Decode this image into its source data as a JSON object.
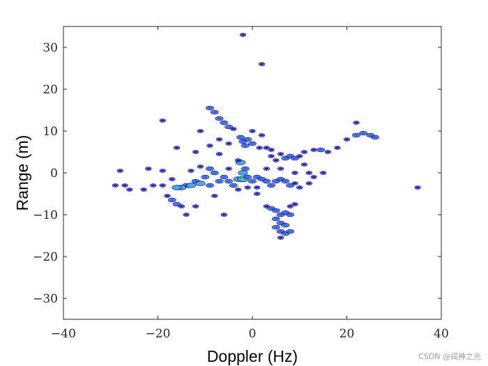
{
  "chart_data": {
    "type": "scatter",
    "xlabel": "Doppler (Hz)",
    "ylabel": "Range (m)",
    "xlim": [
      -40,
      40
    ],
    "ylim": [
      -35,
      35
    ],
    "xticks": [
      -40,
      -20,
      0,
      20,
      40
    ],
    "yticks": [
      -30,
      -20,
      -10,
      0,
      10,
      20,
      30
    ],
    "grid": false,
    "colors": {
      "low": "#1c1ca8",
      "mid": "#2f6fe0",
      "high": "#35b6d8",
      "peak": "#39c1a0"
    },
    "series": [
      {
        "points": [
          {
            "x": -2,
            "y": 33,
            "v": 1
          },
          {
            "x": 2,
            "y": 26,
            "v": 1
          },
          {
            "x": -9,
            "y": 15.5,
            "v": 2
          },
          {
            "x": -8,
            "y": 14.5,
            "v": 2
          },
          {
            "x": -7,
            "y": 13,
            "v": 2
          },
          {
            "x": -6,
            "y": 12,
            "v": 2
          },
          {
            "x": -5,
            "y": 11,
            "v": 2
          },
          {
            "x": -4,
            "y": 10.5,
            "v": 1
          },
          {
            "x": -2.5,
            "y": 8.5,
            "v": 2
          },
          {
            "x": -2,
            "y": 7.5,
            "v": 2
          },
          {
            "x": -1.5,
            "y": 6.5,
            "v": 2
          },
          {
            "x": -1,
            "y": 8,
            "v": 2
          },
          {
            "x": 0,
            "y": 7,
            "v": 2
          },
          {
            "x": 1.5,
            "y": 6,
            "v": 1
          },
          {
            "x": 0,
            "y": 10,
            "v": 1
          },
          {
            "x": 2,
            "y": 9,
            "v": 1
          },
          {
            "x": 3,
            "y": 6,
            "v": 1
          },
          {
            "x": 4,
            "y": 4,
            "v": 1
          },
          {
            "x": 5,
            "y": 3,
            "v": 1
          },
          {
            "x": 7,
            "y": 3.5,
            "v": 2
          },
          {
            "x": 8,
            "y": 4,
            "v": 2
          },
          {
            "x": 9,
            "y": 3.5,
            "v": 2
          },
          {
            "x": 10,
            "y": 4,
            "v": 1
          },
          {
            "x": 11,
            "y": 5,
            "v": 1
          },
          {
            "x": 13,
            "y": 5.5,
            "v": 1
          },
          {
            "x": 14.5,
            "y": 5.5,
            "v": 2
          },
          {
            "x": 16,
            "y": 5,
            "v": 1
          },
          {
            "x": 18,
            "y": 6,
            "v": 1
          },
          {
            "x": 20,
            "y": 8,
            "v": 1
          },
          {
            "x": 22,
            "y": 9,
            "v": 2
          },
          {
            "x": 23.5,
            "y": 9.5,
            "v": 2
          },
          {
            "x": 25,
            "y": 9,
            "v": 2
          },
          {
            "x": 26,
            "y": 8.5,
            "v": 2
          },
          {
            "x": 22,
            "y": 12,
            "v": 1
          },
          {
            "x": -11,
            "y": 1.5,
            "v": 1
          },
          {
            "x": -9,
            "y": 1,
            "v": 2
          },
          {
            "x": -8,
            "y": 0,
            "v": 2
          },
          {
            "x": -10,
            "y": -1,
            "v": 2
          },
          {
            "x": -12,
            "y": -2,
            "v": 2
          },
          {
            "x": -14,
            "y": -3,
            "v": 2
          },
          {
            "x": -15,
            "y": -3.5,
            "v": 3
          },
          {
            "x": -16,
            "y": -3.5,
            "v": 3
          },
          {
            "x": -13,
            "y": -3,
            "v": 3
          },
          {
            "x": -11,
            "y": -2.5,
            "v": 3
          },
          {
            "x": -9,
            "y": -3,
            "v": 2
          },
          {
            "x": -7,
            "y": -2,
            "v": 2
          },
          {
            "x": -6,
            "y": -1,
            "v": 2
          },
          {
            "x": -5,
            "y": -2,
            "v": 2
          },
          {
            "x": -4,
            "y": -3,
            "v": 2
          },
          {
            "x": -3,
            "y": -1.5,
            "v": 3
          },
          {
            "x": -2,
            "y": -1.5,
            "v": 4
          },
          {
            "x": -2.5,
            "y": 2.5,
            "v": 3
          },
          {
            "x": -1.5,
            "y": 1,
            "v": 2
          },
          {
            "x": -2,
            "y": 0,
            "v": 3
          },
          {
            "x": -1,
            "y": -1,
            "v": 2
          },
          {
            "x": 0,
            "y": -2,
            "v": 2
          },
          {
            "x": 1,
            "y": -1,
            "v": 2
          },
          {
            "x": 2,
            "y": -1.5,
            "v": 2
          },
          {
            "x": 3,
            "y": -2,
            "v": 2
          },
          {
            "x": 4,
            "y": -3,
            "v": 2
          },
          {
            "x": 5,
            "y": -2,
            "v": 2
          },
          {
            "x": 6,
            "y": -1.5,
            "v": 2
          },
          {
            "x": 7,
            "y": -2,
            "v": 2
          },
          {
            "x": 8,
            "y": -3,
            "v": 2
          },
          {
            "x": 9,
            "y": -2.5,
            "v": 1
          },
          {
            "x": 10,
            "y": -3.5,
            "v": 1
          },
          {
            "x": 12,
            "y": -2.5,
            "v": 1
          },
          {
            "x": 3,
            "y": 1,
            "v": 1
          },
          {
            "x": 6,
            "y": 1,
            "v": 1
          },
          {
            "x": 9,
            "y": 0,
            "v": 1
          },
          {
            "x": -17,
            "y": -1.5,
            "v": 1
          },
          {
            "x": -19,
            "y": -3,
            "v": 1
          },
          {
            "x": -21,
            "y": -3,
            "v": 1
          },
          {
            "x": -23,
            "y": -4,
            "v": 1
          },
          {
            "x": -18,
            "y": -5.5,
            "v": 1
          },
          {
            "x": -17,
            "y": -6.5,
            "v": 2
          },
          {
            "x": -16,
            "y": -7.5,
            "v": 2
          },
          {
            "x": -15,
            "y": -8,
            "v": 1
          },
          {
            "x": -14,
            "y": -10,
            "v": 1
          },
          {
            "x": -12,
            "y": -8,
            "v": 1
          },
          {
            "x": -8,
            "y": -5.5,
            "v": 1
          },
          {
            "x": -6,
            "y": -10,
            "v": 1
          },
          {
            "x": -19,
            "y": 0.5,
            "v": 1
          },
          {
            "x": -22,
            "y": 1,
            "v": 1
          },
          {
            "x": -28,
            "y": 0.5,
            "v": 1
          },
          {
            "x": -29,
            "y": -3,
            "v": 1
          },
          {
            "x": -27,
            "y": -3,
            "v": 1
          },
          {
            "x": -26,
            "y": -4,
            "v": 1
          },
          {
            "x": -13,
            "y": 0.5,
            "v": 1
          },
          {
            "x": -5,
            "y": 1,
            "v": 1
          },
          {
            "x": -3,
            "y": 3,
            "v": 1
          },
          {
            "x": 1,
            "y": -5,
            "v": 1
          },
          {
            "x": 3,
            "y": -8,
            "v": 1
          },
          {
            "x": 4,
            "y": -8.5,
            "v": 2
          },
          {
            "x": 5,
            "y": -9,
            "v": 2
          },
          {
            "x": 6,
            "y": -10,
            "v": 2
          },
          {
            "x": 7,
            "y": -9.5,
            "v": 2
          },
          {
            "x": 8,
            "y": -10,
            "v": 2
          },
          {
            "x": 5,
            "y": -11,
            "v": 2
          },
          {
            "x": 6,
            "y": -12,
            "v": 2
          },
          {
            "x": 7,
            "y": -12.5,
            "v": 2
          },
          {
            "x": 5,
            "y": -13,
            "v": 2
          },
          {
            "x": 6,
            "y": -14,
            "v": 2
          },
          {
            "x": 7,
            "y": -14.5,
            "v": 2
          },
          {
            "x": 8,
            "y": -14,
            "v": 2
          },
          {
            "x": 6,
            "y": -15.5,
            "v": 1
          },
          {
            "x": 8,
            "y": -8,
            "v": 1
          },
          {
            "x": 9,
            "y": -7.5,
            "v": 1
          },
          {
            "x": 35,
            "y": -3.5,
            "v": 1
          },
          {
            "x": -19,
            "y": 12.5,
            "v": 1
          },
          {
            "x": -11,
            "y": 10,
            "v": 1
          },
          {
            "x": -16,
            "y": 6,
            "v": 1
          },
          {
            "x": -12,
            "y": 5,
            "v": 1
          },
          {
            "x": -9,
            "y": 6.5,
            "v": 1
          },
          {
            "x": -7,
            "y": 4.5,
            "v": 1
          },
          {
            "x": -7,
            "y": 8,
            "v": 1
          },
          {
            "x": -5,
            "y": 7,
            "v": 1
          },
          {
            "x": 4,
            "y": 5.5,
            "v": 1
          },
          {
            "x": 6,
            "y": 4.5,
            "v": 1
          },
          {
            "x": 11,
            "y": 2,
            "v": 1
          },
          {
            "x": 12,
            "y": 0,
            "v": 1
          },
          {
            "x": 13,
            "y": -1,
            "v": 1
          },
          {
            "x": -3,
            "y": -4,
            "v": 1
          },
          {
            "x": -1,
            "y": -3.5,
            "v": 1
          },
          {
            "x": 1,
            "y": -3.5,
            "v": 1
          },
          {
            "x": 15,
            "y": 0,
            "v": 1
          }
        ]
      }
    ]
  },
  "watermark": "CSDN @阎神之光"
}
